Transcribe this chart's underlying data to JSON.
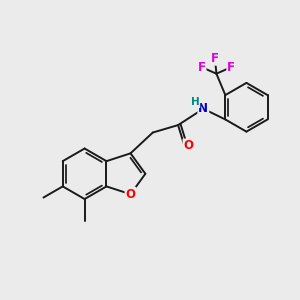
{
  "bg_color": "#ebebeb",
  "bond_color": "#1a1a1a",
  "bond_width": 1.4,
  "atom_colors": {
    "O": "#ff0000",
    "N": "#0000cc",
    "F": "#dd00dd",
    "H": "#008888",
    "C": "#1a1a1a"
  },
  "font_size": 8.5,
  "font_size_small": 7.5
}
